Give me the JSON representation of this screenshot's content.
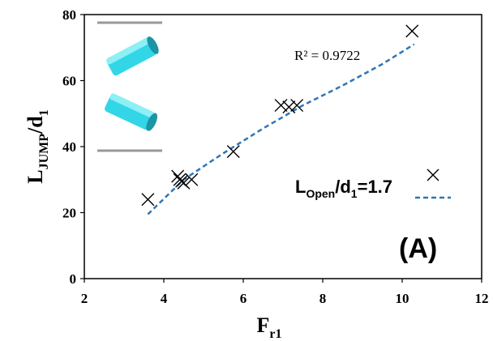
{
  "chart_data": {
    "type": "scatter",
    "xlabel_main": "F",
    "xlabel_sub": "r1",
    "ylabel_main": "L",
    "ylabel_sub1": "JUMP",
    "ylabel_mid": "/d",
    "ylabel_sub2": "1",
    "xlim": [
      2,
      12
    ],
    "ylim": [
      0,
      80
    ],
    "x_ticks": [
      "2",
      "4",
      "6",
      "8",
      "10",
      "12"
    ],
    "y_ticks": [
      "0",
      "20",
      "40",
      "60",
      "80"
    ],
    "grid": false,
    "series": [
      {
        "name_main": "L",
        "name_sub1": "Open",
        "name_mid": "/d",
        "name_sub2": "1",
        "name_tail": "=1.7",
        "marker": "x",
        "points": [
          [
            3.6,
            24
          ],
          [
            4.35,
            31
          ],
          [
            4.4,
            30
          ],
          [
            4.45,
            29.5
          ],
          [
            4.5,
            29
          ],
          [
            4.7,
            30
          ],
          [
            5.75,
            38.5
          ],
          [
            6.95,
            52.5
          ],
          [
            7.15,
            52
          ],
          [
            7.35,
            52.5
          ],
          [
            10.25,
            75
          ]
        ]
      }
    ],
    "trendline": {
      "style": "dashed",
      "color": "#2e75b6",
      "points": [
        [
          3.6,
          19.5
        ],
        [
          4.5,
          30
        ],
        [
          5.5,
          38
        ],
        [
          6.5,
          45.5
        ],
        [
          7.5,
          52.5
        ],
        [
          8.5,
          58.5
        ],
        [
          9.5,
          65
        ],
        [
          10.3,
          71
        ]
      ],
      "r2_label": "R² = 0.9722"
    },
    "panel_label": "(A)",
    "colors": {
      "marker": "#000000",
      "trendline": "#2e75b6",
      "inset_pipe": "#33d6e6"
    },
    "inset_icon": "cylinder-pipes-icon"
  }
}
